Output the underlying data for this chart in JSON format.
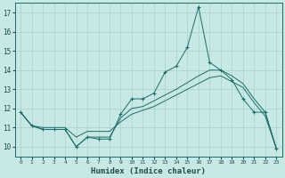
{
  "bg_color": "#c8e8e5",
  "grid_color": "#a8d0cc",
  "line_color": "#1a6e6a",
  "marker_color": "#1a6e6a",
  "xlabel": "Humidex (Indice chaleur)",
  "ylabel_ticks": [
    10,
    11,
    12,
    13,
    14,
    15,
    16,
    17
  ],
  "xlim": [
    -0.5,
    23.5
  ],
  "ylim": [
    9.5,
    17.5
  ],
  "series": [
    {
      "x": [
        0,
        1,
        2,
        3,
        4,
        5,
        6,
        7,
        8,
        9,
        10,
        11,
        12,
        13,
        14,
        15,
        16,
        17,
        18,
        19,
        20,
        21,
        22,
        23
      ],
      "y": [
        11.8,
        11.1,
        10.9,
        10.9,
        10.9,
        10.0,
        10.5,
        10.4,
        10.4,
        11.7,
        12.5,
        12.5,
        12.8,
        13.9,
        14.2,
        15.2,
        17.3,
        14.4,
        14.0,
        13.5,
        12.5,
        11.8,
        11.8,
        9.9
      ],
      "marker": true
    },
    {
      "x": [
        0,
        1,
        2,
        3,
        4,
        5,
        6,
        7,
        8,
        9,
        10,
        11,
        12,
        13,
        14,
        15,
        16,
        17,
        18,
        19,
        20,
        21,
        22,
        23
      ],
      "y": [
        11.8,
        11.1,
        10.9,
        10.9,
        10.9,
        10.0,
        10.5,
        10.5,
        10.5,
        11.5,
        12.0,
        12.1,
        12.4,
        12.7,
        13.0,
        13.35,
        13.7,
        14.0,
        14.0,
        13.7,
        13.3,
        12.5,
        11.8,
        9.9
      ],
      "marker": false
    },
    {
      "x": [
        0,
        1,
        2,
        3,
        4,
        5,
        6,
        7,
        8,
        9,
        10,
        11,
        12,
        13,
        14,
        15,
        16,
        17,
        18,
        19,
        20,
        21,
        22,
        23
      ],
      "y": [
        11.8,
        11.1,
        11.0,
        11.0,
        11.0,
        10.5,
        10.8,
        10.8,
        10.8,
        11.3,
        11.7,
        11.9,
        12.1,
        12.4,
        12.7,
        13.0,
        13.3,
        13.6,
        13.7,
        13.4,
        13.1,
        12.3,
        11.6,
        9.9
      ],
      "marker": false
    }
  ]
}
